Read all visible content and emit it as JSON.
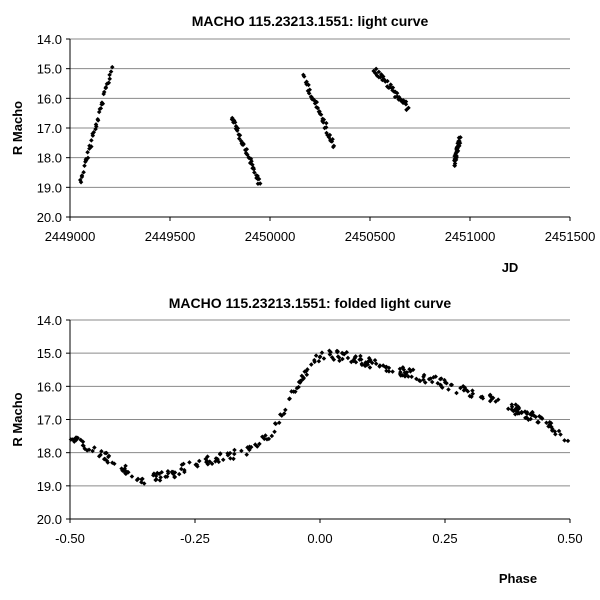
{
  "chart_data": [
    {
      "type": "scatter",
      "title": "MACHO 115.23213.1551: light curve",
      "xlabel": "JD",
      "ylabel": "R Macho",
      "xlim": [
        2449000,
        2451500
      ],
      "ylim": [
        14.0,
        20.0
      ],
      "y_inverted": true,
      "xticks": [
        2449000,
        2449500,
        2450000,
        2450500,
        2451000,
        2451500
      ],
      "xtick_labels": [
        "2449000",
        "2449500",
        "2450000",
        "2450500",
        "2451000",
        "2451500"
      ],
      "yticks": [
        14,
        15,
        16,
        17,
        18,
        19,
        20
      ],
      "ytick_labels": [
        "14.0",
        "15.0",
        "16.0",
        "17.0",
        "18.0",
        "19.0",
        "20.0"
      ],
      "grid": "horizontal",
      "marker_color": "#000000",
      "segments": [
        {
          "x0": 2449050,
          "x1": 2449210,
          "y0": 18.8,
          "y1": 15.0
        },
        {
          "x0": 2449810,
          "x1": 2449950,
          "y0": 16.6,
          "y1": 18.9
        },
        {
          "x0": 2450170,
          "x1": 2450320,
          "y0": 15.3,
          "y1": 17.6
        },
        {
          "x0": 2450520,
          "x1": 2450690,
          "y0": 15.0,
          "y1": 16.3
        },
        {
          "x0": 2450920,
          "x1": 2450950,
          "y0": 18.2,
          "y1": 17.4
        }
      ]
    },
    {
      "type": "scatter",
      "title": "MACHO 115.23213.1551: folded light curve",
      "xlabel": "Phase",
      "ylabel": "R Macho",
      "xlim": [
        -0.5,
        0.5
      ],
      "ylim": [
        14.0,
        20.0
      ],
      "y_inverted": true,
      "xticks": [
        -0.5,
        -0.25,
        0.0,
        0.25,
        0.5
      ],
      "xtick_labels": [
        "-0.50",
        "-0.25",
        "0.00",
        "0.25",
        "0.50"
      ],
      "yticks": [
        14,
        15,
        16,
        17,
        18,
        19,
        20
      ],
      "ytick_labels": [
        "14.0",
        "15.0",
        "16.0",
        "17.0",
        "18.0",
        "19.0",
        "20.0"
      ],
      "grid": "horizontal",
      "marker_color": "#000000",
      "curve": [
        [
          -0.5,
          17.6
        ],
        [
          -0.45,
          17.9
        ],
        [
          -0.4,
          18.45
        ],
        [
          -0.35,
          18.85
        ],
        [
          -0.3,
          18.65
        ],
        [
          -0.25,
          18.35
        ],
        [
          -0.2,
          18.15
        ],
        [
          -0.15,
          17.95
        ],
        [
          -0.1,
          17.5
        ],
        [
          -0.05,
          16.1
        ],
        [
          0.0,
          15.05
        ],
        [
          0.05,
          15.1
        ],
        [
          0.1,
          15.3
        ],
        [
          0.15,
          15.5
        ],
        [
          0.2,
          15.7
        ],
        [
          0.25,
          15.95
        ],
        [
          0.3,
          16.2
        ],
        [
          0.35,
          16.45
        ],
        [
          0.4,
          16.75
        ],
        [
          0.45,
          17.1
        ],
        [
          0.5,
          17.6
        ]
      ]
    }
  ]
}
